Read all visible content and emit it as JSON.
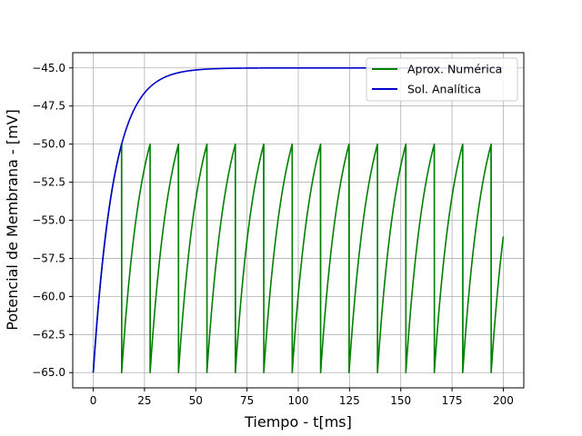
{
  "chart_data": {
    "type": "line",
    "title": "",
    "xlabel": "Tiempo - t[ms]",
    "ylabel": "Potencial de Membrana - [mV]",
    "xlim": [
      -10,
      210
    ],
    "ylim": [
      -66,
      -44
    ],
    "xticks": [
      0,
      25,
      50,
      75,
      100,
      125,
      150,
      175,
      200
    ],
    "xtick_labels": [
      "0",
      "25",
      "50",
      "75",
      "100",
      "125",
      "150",
      "175",
      "200"
    ],
    "yticks": [
      -65.0,
      -62.5,
      -60.0,
      -57.5,
      -55.0,
      -52.5,
      -50.0,
      -47.5,
      -45.0
    ],
    "ytick_labels": [
      "−65.0",
      "−62.5",
      "−60.0",
      "−57.5",
      "−55.0",
      "−52.5",
      "−50.0",
      "−47.5",
      "−45.0"
    ],
    "grid": true,
    "legend_position": "upper right",
    "model": {
      "v_rest": -65.0,
      "v_inf": -45.0,
      "threshold": -50.0,
      "reset": -65.0,
      "tau_ms": 10,
      "t_end_ms": 200,
      "spike_times_ms": [
        13.86,
        27.73,
        41.59,
        55.45,
        69.31,
        83.18,
        97.04,
        110.9,
        124.77,
        138.63,
        152.49,
        166.36,
        180.22,
        194.08
      ]
    },
    "series": [
      {
        "name": "Aprox. Numérica",
        "color": "#008000",
        "kind": "numerical"
      },
      {
        "name": "Sol. Analítica",
        "color": "#0000cc",
        "kind": "analytical"
      }
    ]
  }
}
